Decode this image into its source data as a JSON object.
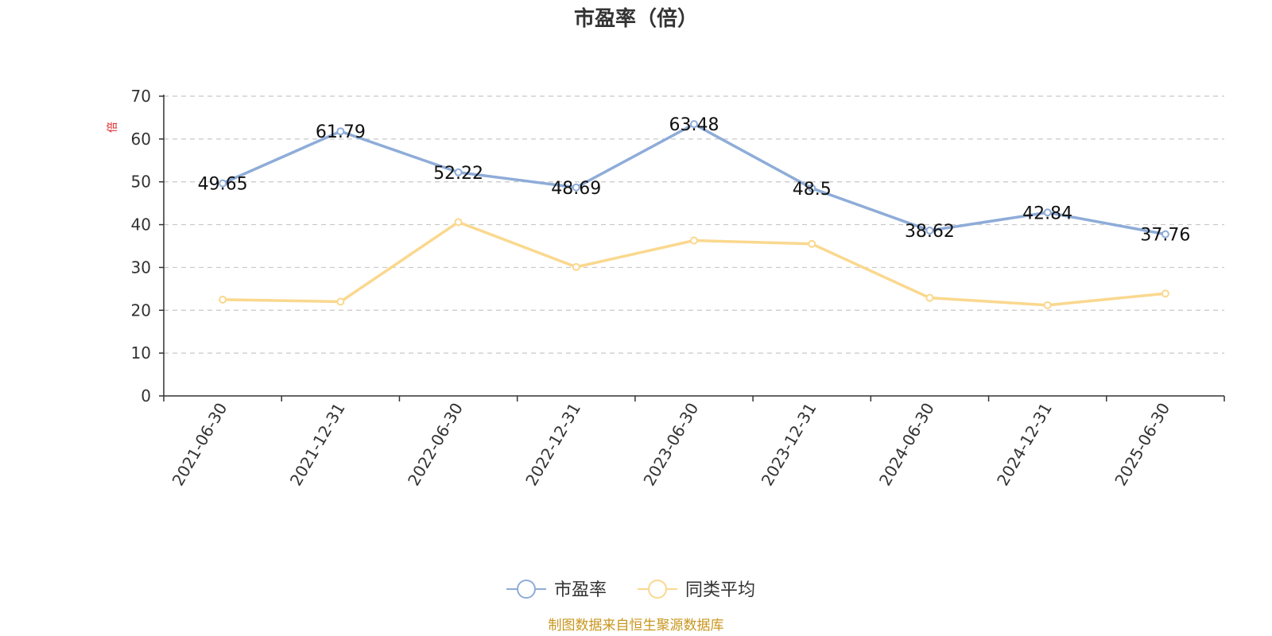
{
  "chart_data": {
    "type": "line",
    "title": "市盈率（倍）",
    "ylabel": "倍",
    "xlabel": "",
    "ylim": [
      0,
      70
    ],
    "yticks": [
      0,
      10,
      20,
      30,
      40,
      50,
      60,
      70
    ],
    "grid": true,
    "legend_position": "bottom-center",
    "categories": [
      "2021-06-30",
      "2021-12-31",
      "2022-06-30",
      "2022-12-31",
      "2023-06-30",
      "2023-12-31",
      "2024-06-30",
      "2024-12-31",
      "2025-06-30"
    ],
    "series": [
      {
        "name": "市盈率",
        "color": "#8eacd8",
        "values": [
          49.65,
          61.79,
          52.22,
          48.69,
          63.48,
          48.5,
          38.62,
          42.84,
          37.76
        ],
        "labels": [
          "49.65",
          "61.79",
          "52.22",
          "48.69",
          "63.48",
          "48.5",
          "38.62",
          "42.84",
          "37.76"
        ],
        "show_labels": true
      },
      {
        "name": "同类平均",
        "color": "#fad88e",
        "values": [
          22.5,
          22.0,
          40.6,
          30.1,
          36.3,
          35.5,
          22.9,
          21.2,
          23.9
        ],
        "show_labels": false
      }
    ]
  },
  "footer": {
    "source": "制图数据来自恒生聚源数据库"
  }
}
